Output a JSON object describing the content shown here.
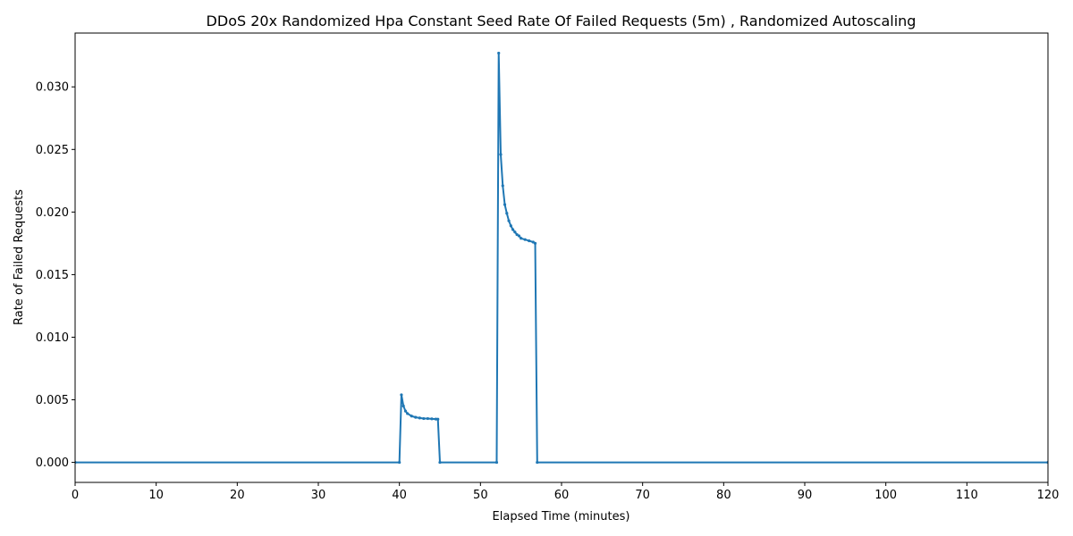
{
  "chart_data": {
    "type": "line",
    "title": "DDoS 20x Randomized Hpa Constant Seed Rate Of Failed Requests (5m) , Randomized Autoscaling",
    "xlabel": "Elapsed Time (minutes)",
    "ylabel": "Rate of Failed Requests",
    "xlim": [
      0,
      120
    ],
    "ylim": [
      -0.0016,
      0.0343
    ],
    "x_ticks": [
      0,
      10,
      20,
      30,
      40,
      50,
      60,
      70,
      80,
      90,
      100,
      110,
      120
    ],
    "y_ticks": [
      0.0,
      0.005,
      0.01,
      0.015,
      0.02,
      0.025,
      0.03
    ],
    "y_tick_labels": [
      "0.000",
      "0.005",
      "0.010",
      "0.015",
      "0.020",
      "0.025",
      "0.030"
    ],
    "grid": false,
    "line_color": "#1f77b4",
    "series": [
      {
        "x": [
          0,
          40.0,
          40.25,
          40.5,
          40.75,
          41.0,
          41.5,
          42.0,
          42.5,
          43.0,
          43.5,
          44.0,
          44.5,
          44.75,
          45.0,
          52.0,
          52.25,
          52.5,
          52.75,
          53.0,
          53.25,
          53.5,
          53.75,
          54.0,
          54.25,
          54.5,
          54.75,
          55.0,
          55.5,
          56.0,
          56.5,
          56.75,
          57.0,
          120
        ],
        "y": [
          0,
          0,
          0.0054,
          0.0045,
          0.0041,
          0.0039,
          0.0037,
          0.0036,
          0.00355,
          0.0035,
          0.0035,
          0.00348,
          0.00346,
          0.00345,
          0,
          0,
          0.0327,
          0.0246,
          0.0221,
          0.0206,
          0.0199,
          0.0193,
          0.0189,
          0.0186,
          0.0184,
          0.0182,
          0.0181,
          0.0179,
          0.0178,
          0.0177,
          0.0176,
          0.0175,
          0,
          0
        ]
      }
    ]
  }
}
